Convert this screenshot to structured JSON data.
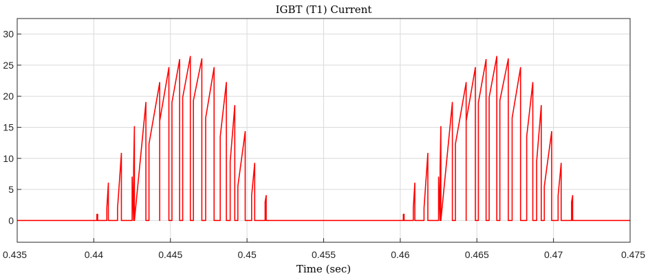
{
  "chart_data": {
    "type": "line",
    "title": "IGBT (T1) Current",
    "xlabel": "Time (sec)",
    "ylabel": "",
    "xlim": [
      0.435,
      0.475
    ],
    "ylim": [
      -3.5,
      32.5
    ],
    "xticks": [
      0.435,
      0.44,
      0.445,
      0.45,
      0.455,
      0.46,
      0.465,
      0.47,
      0.475
    ],
    "xtick_labels": [
      "0.435",
      "0.44",
      "0.445",
      "0.45",
      "0.455",
      "0.46",
      "0.465",
      "0.47",
      "0.475"
    ],
    "yticks": [
      0,
      5,
      10,
      15,
      20,
      25,
      30
    ],
    "ytick_labels": [
      "0",
      "5",
      "10",
      "15",
      "20",
      "25",
      "30"
    ],
    "grid": true,
    "series_color": "#ff0000",
    "pulse_bursts": [
      {
        "pulses": [
          {
            "on": 0.4402,
            "off": 0.44025,
            "start": 1.0,
            "end": 1.0
          },
          {
            "on": 0.44085,
            "off": 0.44095,
            "start": 2.0,
            "end": 6.0
          },
          {
            "on": 0.44155,
            "off": 0.4418,
            "start": 2.0,
            "end": 10.8
          },
          {
            "on": 0.4425,
            "off": 0.44265,
            "start": 7.0,
            "end": 15.1
          },
          {
            "on": 0.4426,
            "off": 0.4434,
            "start": 8.5,
            "end": 19.0
          },
          {
            "on": 0.4436,
            "off": 0.4443,
            "start": 12.3,
            "end": 22.2
          },
          {
            "on": 0.4443,
            "off": 0.4449,
            "start": 16.0,
            "end": 24.6
          },
          {
            "on": 0.4451,
            "off": 0.4456,
            "start": 19.0,
            "end": 25.9
          },
          {
            "on": 0.4458,
            "off": 0.4463,
            "start": 19.8,
            "end": 26.4
          },
          {
            "on": 0.4465,
            "off": 0.44705,
            "start": 19.3,
            "end": 26.0
          },
          {
            "on": 0.4473,
            "off": 0.44785,
            "start": 16.5,
            "end": 24.6
          },
          {
            "on": 0.44825,
            "off": 0.44865,
            "start": 13.5,
            "end": 22.2
          },
          {
            "on": 0.4489,
            "off": 0.4492,
            "start": 9.5,
            "end": 18.5
          },
          {
            "on": 0.4494,
            "off": 0.44988,
            "start": 5.5,
            "end": 14.3
          },
          {
            "on": 0.4503,
            "off": 0.4505,
            "start": 4.0,
            "end": 9.2
          },
          {
            "on": 0.45118,
            "off": 0.45125,
            "start": 3.0,
            "end": 4.0
          }
        ]
      },
      {
        "pulses": [
          {
            "on": 0.4602,
            "off": 0.46025,
            "start": 1.0,
            "end": 1.0
          },
          {
            "on": 0.46085,
            "off": 0.46095,
            "start": 2.0,
            "end": 6.0
          },
          {
            "on": 0.46155,
            "off": 0.4618,
            "start": 2.0,
            "end": 10.8
          },
          {
            "on": 0.4625,
            "off": 0.46265,
            "start": 7.0,
            "end": 15.1
          },
          {
            "on": 0.4626,
            "off": 0.4634,
            "start": 8.5,
            "end": 19.0
          },
          {
            "on": 0.4636,
            "off": 0.4643,
            "start": 12.3,
            "end": 22.2
          },
          {
            "on": 0.4643,
            "off": 0.4649,
            "start": 16.0,
            "end": 24.6
          },
          {
            "on": 0.4651,
            "off": 0.4656,
            "start": 19.0,
            "end": 25.9
          },
          {
            "on": 0.4658,
            "off": 0.4663,
            "start": 19.8,
            "end": 26.4
          },
          {
            "on": 0.4665,
            "off": 0.46705,
            "start": 19.3,
            "end": 26.0
          },
          {
            "on": 0.4673,
            "off": 0.46785,
            "start": 16.5,
            "end": 24.6
          },
          {
            "on": 0.46825,
            "off": 0.46865,
            "start": 13.5,
            "end": 22.2
          },
          {
            "on": 0.4689,
            "off": 0.4692,
            "start": 9.5,
            "end": 18.5
          },
          {
            "on": 0.4694,
            "off": 0.46988,
            "start": 5.5,
            "end": 14.3
          },
          {
            "on": 0.4703,
            "off": 0.4705,
            "start": 4.0,
            "end": 9.2
          },
          {
            "on": 0.47118,
            "off": 0.47125,
            "start": 3.0,
            "end": 4.0
          }
        ]
      }
    ]
  }
}
